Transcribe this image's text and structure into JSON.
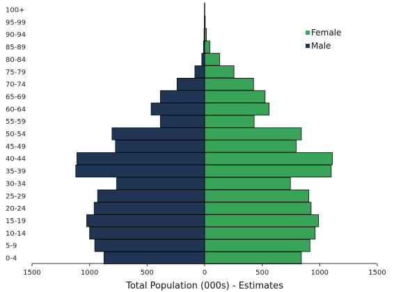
{
  "chart_data": {
    "type": "bar",
    "orientation": "horizontal",
    "title": "",
    "xlabel": "Total Population (000s) - Estimates",
    "ylabel": "",
    "xlim": [
      -1500,
      1500
    ],
    "x_ticks": [
      -1500,
      -1000,
      -500,
      0,
      500,
      1000,
      1500
    ],
    "x_tick_labels": [
      "1500",
      "1000",
      "500",
      "0",
      "500",
      "1000",
      "1500"
    ],
    "categories": [
      "0-4",
      "5-9",
      "10-14",
      "15-19",
      "20-24",
      "25-29",
      "30-34",
      "35-39",
      "40-44",
      "45-49",
      "50-54",
      "55-59",
      "60-64",
      "65-69",
      "70-74",
      "75-79",
      "80-84",
      "85-89",
      "90-94",
      "95-99",
      "100+"
    ],
    "series": [
      {
        "name": "Female",
        "color": "#38a457",
        "values": [
          840,
          915,
          960,
          990,
          925,
          905,
          745,
          1100,
          1110,
          795,
          840,
          430,
          560,
          525,
          425,
          255,
          130,
          45,
          15,
          5,
          2
        ]
      },
      {
        "name": "Male",
        "color": "#1f3553",
        "values": [
          875,
          955,
          1000,
          1025,
          960,
          930,
          765,
          1120,
          1110,
          775,
          805,
          385,
          465,
          385,
          240,
          85,
          25,
          10,
          5,
          3,
          2
        ]
      }
    ],
    "grid": false,
    "legend_position": "top-right"
  }
}
